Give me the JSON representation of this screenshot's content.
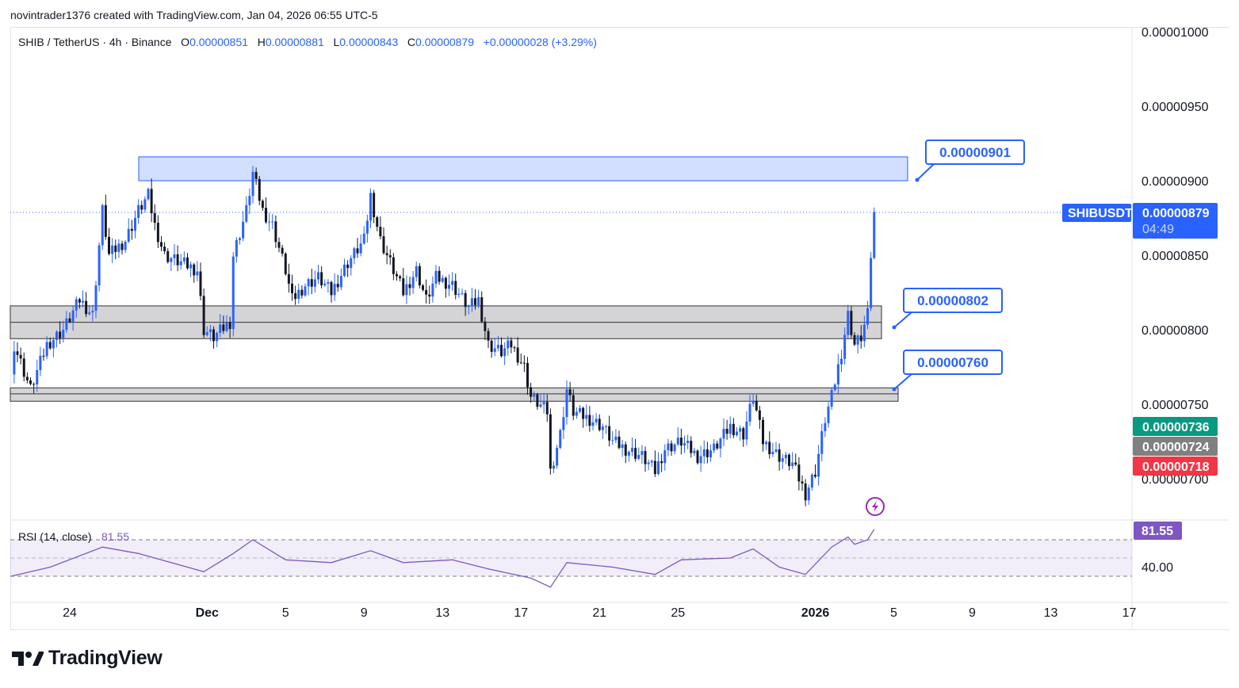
{
  "credit": "novintrader1376 created with TradingView.com, Jan 04, 2026 06:55 UTC-5",
  "legend": {
    "symbol": "SHIB / TetherUS · 4h · Binance",
    "o_label": "O",
    "open": "0.00000851",
    "h_label": "H",
    "high": "0.00000881",
    "l_label": "L",
    "low": "0.00000843",
    "c_label": "C",
    "close": "0.00000879",
    "change": "+0.00000028 (+3.29%)"
  },
  "price_tag": {
    "symbol": "SHIBUSDT",
    "price": "0.00000879",
    "countdown": "04:49",
    "color": "#2962ff"
  },
  "markers": [
    {
      "label": "0.00000736",
      "color": "#089981"
    },
    {
      "label": "0.00000724",
      "color": "#808080"
    },
    {
      "label": "0.00000718",
      "color": "#f23645"
    }
  ],
  "callouts": [
    "0.00000901",
    "0.00000802",
    "0.00000760"
  ],
  "rsi": {
    "title": "RSI (14, close)",
    "value": "81.55",
    "axis_label": "40.00",
    "color": "#7e57c2"
  },
  "logo": "TradingView",
  "chart_data": {
    "type": "candlestick",
    "y_scale_unit": "1e-8",
    "ylim": [
      6.8e-06,
      1e-05
    ],
    "y_ticks": [
      "0.00001000",
      "0.00000950",
      "0.00000900",
      "0.00000850",
      "0.00000800",
      "0.00000750",
      "0.00000700"
    ],
    "x_ticks": [
      "24",
      "Dec",
      "5",
      "9",
      "13",
      "17",
      "21",
      "25",
      "2026",
      "5",
      "9",
      "13",
      "17"
    ],
    "grid": false,
    "up_color": "#2962ff",
    "down_color": "#131722",
    "zones": [
      {
        "top": 9.16e-06,
        "bottom": 9e-06,
        "color": "#d1defe",
        "border": "#2962ff"
      },
      {
        "top": 8.16e-06,
        "bottom": 7.94e-06,
        "mid": 8.05e-06,
        "color": "#d4d4d6",
        "border": "#333"
      },
      {
        "top": 7.61e-06,
        "bottom": 7.52e-06,
        "mid": 7.57e-06,
        "color": "#d4d4d6",
        "border": "#333"
      }
    ],
    "close_series": [
      [
        "2025-11-21T00:00",
        770
      ],
      [
        "2025-11-21T04:00",
        790
      ],
      [
        "2025-11-22T00:00",
        760
      ],
      [
        "2025-11-22T20:00",
        790
      ],
      [
        "2025-11-23T16:00",
        800
      ],
      [
        "2025-11-24T12:00",
        820
      ],
      [
        "2025-11-25T04:00",
        810
      ],
      [
        "2025-11-25T16:00",
        880
      ],
      [
        "2025-11-26T00:00",
        850
      ],
      [
        "2025-11-26T20:00",
        860
      ],
      [
        "2025-11-27T12:00",
        880
      ],
      [
        "2025-11-28T00:00",
        890
      ],
      [
        "2025-11-28T08:00",
        870
      ],
      [
        "2025-11-28T20:00",
        850
      ],
      [
        "2025-11-29T16:00",
        845
      ],
      [
        "2025-11-30T12:00",
        840
      ],
      [
        "2025-11-30T20:00",
        800
      ],
      [
        "2025-12-01T08:00",
        795
      ],
      [
        "2025-12-02T04:00",
        805
      ],
      [
        "2025-12-02T08:00",
        850
      ],
      [
        "2025-12-03T00:00",
        880
      ],
      [
        "2025-12-03T08:00",
        905
      ],
      [
        "2025-12-03T20:00",
        880
      ],
      [
        "2025-12-04T08:00",
        870
      ],
      [
        "2025-12-05T00:00",
        840
      ],
      [
        "2025-12-05T08:00",
        820
      ],
      [
        "2025-12-06T00:00",
        830
      ],
      [
        "2025-12-06T16:00",
        835
      ],
      [
        "2025-12-07T08:00",
        825
      ],
      [
        "2025-12-08T04:00",
        845
      ],
      [
        "2025-12-09T00:00",
        860
      ],
      [
        "2025-12-09T08:00",
        890
      ],
      [
        "2025-12-09T20:00",
        860
      ],
      [
        "2025-12-10T12:00",
        840
      ],
      [
        "2025-12-11T00:00",
        825
      ],
      [
        "2025-12-11T16:00",
        840
      ],
      [
        "2025-12-12T04:00",
        820
      ],
      [
        "2025-12-12T16:00",
        835
      ],
      [
        "2025-12-13T12:00",
        830
      ],
      [
        "2025-12-14T08:00",
        815
      ],
      [
        "2025-12-14T20:00",
        820
      ],
      [
        "2025-12-15T08:00",
        790
      ],
      [
        "2025-12-16T00:00",
        785
      ],
      [
        "2025-12-16T12:00",
        790
      ],
      [
        "2025-12-17T04:00",
        775
      ],
      [
        "2025-12-17T12:00",
        755
      ],
      [
        "2025-12-18T08:00",
        745
      ],
      [
        "2025-12-18T12:00",
        705
      ],
      [
        "2025-12-19T00:00",
        730
      ],
      [
        "2025-12-19T08:00",
        760
      ],
      [
        "2025-12-19T16:00",
        745
      ],
      [
        "2025-12-20T12:00",
        740
      ],
      [
        "2025-12-21T04:00",
        735
      ],
      [
        "2025-12-21T16:00",
        725
      ],
      [
        "2025-12-22T08:00",
        720
      ],
      [
        "2025-12-23T04:00",
        715
      ],
      [
        "2025-12-23T20:00",
        705
      ],
      [
        "2025-12-24T08:00",
        720
      ],
      [
        "2025-12-25T04:00",
        725
      ],
      [
        "2025-12-26T00:00",
        715
      ],
      [
        "2025-12-26T20:00",
        720
      ],
      [
        "2025-12-27T16:00",
        735
      ],
      [
        "2025-12-28T08:00",
        730
      ],
      [
        "2025-12-28T20:00",
        755
      ],
      [
        "2025-12-29T08:00",
        725
      ],
      [
        "2025-12-30T04:00",
        715
      ],
      [
        "2025-12-30T20:00",
        710
      ],
      [
        "2025-12-31T12:00",
        690
      ],
      [
        "2026-01-01T00:00",
        705
      ],
      [
        "2026-01-01T12:00",
        740
      ],
      [
        "2026-01-01T20:00",
        755
      ],
      [
        "2026-01-02T08:00",
        785
      ],
      [
        "2026-01-02T16:00",
        810
      ],
      [
        "2026-01-03T00:00",
        790
      ],
      [
        "2026-01-03T08:00",
        795
      ],
      [
        "2026-01-03T16:00",
        810
      ],
      [
        "2026-01-03T20:00",
        850
      ],
      [
        "2026-01-04T00:00",
        879
      ]
    ],
    "rsi_series": [
      [
        "2025-11-21T00:00",
        30
      ],
      [
        "2025-11-23T00:00",
        40
      ],
      [
        "2025-11-25T16:00",
        62
      ],
      [
        "2025-11-27T12:00",
        55
      ],
      [
        "2025-11-30T20:00",
        35
      ],
      [
        "2025-12-02T08:00",
        55
      ],
      [
        "2025-12-03T08:00",
        70
      ],
      [
        "2025-12-05T00:00",
        48
      ],
      [
        "2025-12-07T08:00",
        45
      ],
      [
        "2025-12-09T08:00",
        58
      ],
      [
        "2025-12-11T00:00",
        45
      ],
      [
        "2025-12-13T12:00",
        48
      ],
      [
        "2025-12-15T08:00",
        38
      ],
      [
        "2025-12-17T12:00",
        28
      ],
      [
        "2025-12-18T12:00",
        18
      ],
      [
        "2025-12-19T08:00",
        45
      ],
      [
        "2025-12-21T16:00",
        40
      ],
      [
        "2025-12-23T20:00",
        32
      ],
      [
        "2025-12-25T04:00",
        48
      ],
      [
        "2025-12-27T16:00",
        50
      ],
      [
        "2025-12-28T20:00",
        60
      ],
      [
        "2025-12-30T04:00",
        40
      ],
      [
        "2025-12-31T12:00",
        32
      ],
      [
        "2026-01-01T20:00",
        62
      ],
      [
        "2026-01-02T16:00",
        73
      ],
      [
        "2026-01-03T00:00",
        65
      ],
      [
        "2026-01-03T16:00",
        70
      ],
      [
        "2026-01-04T00:00",
        81.55
      ]
    ]
  }
}
